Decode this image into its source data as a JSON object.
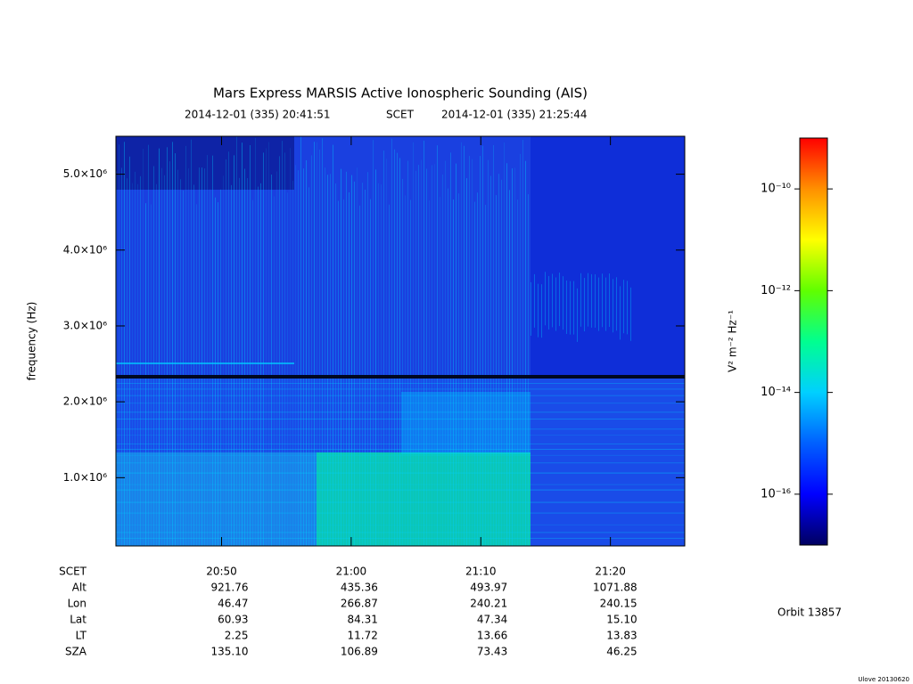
{
  "chart_data": {
    "type": "spectrogram",
    "title": "Mars Express MARSIS Active Ionospheric Sounding (AIS)",
    "xlim": [
      "2014-12-01 (335) 20:41:51",
      "2014-12-01 (335) 21:25:44"
    ],
    "x_label": "SCET",
    "xticks": [
      "20:50",
      "21:00",
      "21:10",
      "21:20"
    ],
    "y_label": "frequency (Hz)",
    "ylim": [
      100000,
      5500000
    ],
    "yticks": [
      {
        "value": 1000000,
        "label": "1.0×10⁶"
      },
      {
        "value": 2000000,
        "label": "2.0×10⁶"
      },
      {
        "value": 3000000,
        "label": "3.0×10⁶"
      },
      {
        "value": 4000000,
        "label": "4.0×10⁶"
      },
      {
        "value": 5000000,
        "label": "5.0×10⁶"
      }
    ],
    "ephemeris": [
      {
        "label": "Alt",
        "values": [
          "921.76",
          "435.36",
          "493.97",
          "1071.88"
        ]
      },
      {
        "label": "Lon",
        "values": [
          "46.47",
          "266.87",
          "240.21",
          "240.15"
        ]
      },
      {
        "label": "Lat",
        "values": [
          "60.93",
          "84.31",
          "47.34",
          "15.10"
        ]
      },
      {
        "label": "LT",
        "values": [
          "2.25",
          "11.72",
          "13.66",
          "13.83"
        ]
      },
      {
        "label": "SZA",
        "values": [
          "135.10",
          "106.89",
          "73.43",
          "46.25"
        ]
      }
    ],
    "colorbar": {
      "label": "V² m⁻² Hz⁻¹",
      "log": true,
      "zlim": [
        1e-17,
        1e-09
      ],
      "zticks": [
        {
          "value": 1e-16,
          "label": "10⁻¹⁶"
        },
        {
          "value": 1e-14,
          "label": "10⁻¹⁴"
        },
        {
          "value": 1e-12,
          "label": "10⁻¹²"
        },
        {
          "value": 1e-10,
          "label": "10⁻¹⁰"
        }
      ],
      "colormap": [
        "#000060",
        "#0000ff",
        "#0060ff",
        "#00d0ff",
        "#00ff90",
        "#60ff00",
        "#ffff00",
        "#ff9000",
        "#ff0000"
      ]
    },
    "orbit": "Orbit 13857",
    "footer": "Ulove 20130620"
  }
}
